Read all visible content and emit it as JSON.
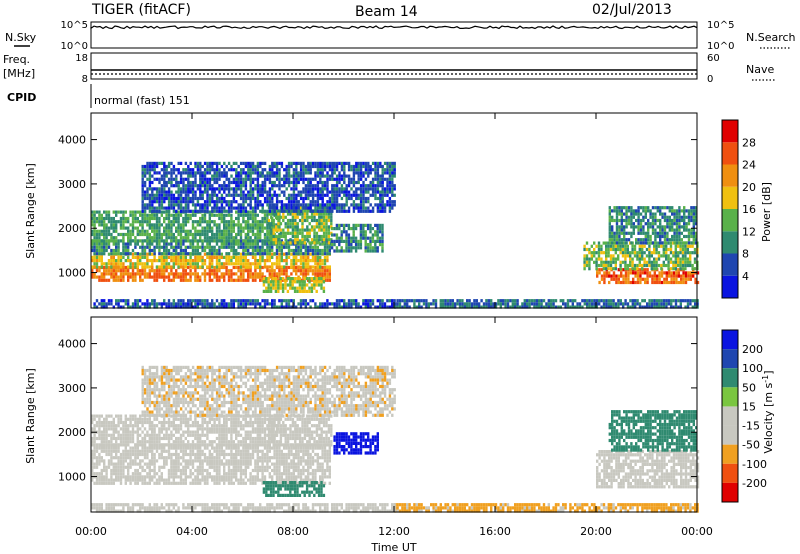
{
  "header": {
    "radar": "TIGER (fitACF)",
    "beam": "Beam 14",
    "date": "02/Jul/2013"
  },
  "nsky_panel": {
    "left_label": "N.Sky",
    "right_label": "N.Search",
    "left_ticks": [
      "10^5",
      "10^0"
    ],
    "right_ticks": [
      "10^5",
      "10^0"
    ]
  },
  "freq_panel": {
    "left_label_1": "Freq.",
    "left_label_2": "[MHz]",
    "right_label": "Nave",
    "left_ticks": [
      "18",
      "8"
    ],
    "right_ticks": [
      "60",
      "0"
    ]
  },
  "cpid_panel": {
    "label": "CPID",
    "mode": "normal (fast) 151"
  },
  "colors": {
    "power": [
      "#0a14e0",
      "#1f46b0",
      "#2f8a70",
      "#59b14a",
      "#f0c010",
      "#f08f10",
      "#f05010",
      "#e00000"
    ],
    "velocity": [
      "#e00000",
      "#f05010",
      "#f0a020",
      "#c8c8c0",
      "#c8c8c0",
      "#7ac640",
      "#2f8a70",
      "#1f46b0",
      "#0a14e0"
    ],
    "velocity_gray": "#c8c8c0"
  },
  "chart_data": [
    {
      "type": "heatmap",
      "name": "power",
      "ylabel": "Slant Range [km]",
      "yticks": [
        1000,
        2000,
        3000,
        4000
      ],
      "ylim": [
        200,
        4600
      ],
      "xlim": [
        0,
        24
      ],
      "colorbar": {
        "label": "Power [dB]",
        "ticks": [
          4,
          8,
          12,
          16,
          20,
          24,
          28
        ],
        "range": [
          0,
          32
        ]
      },
      "features": [
        {
          "t0": 0.0,
          "t1": 9.5,
          "r0": 850,
          "r1": 1150,
          "level": 24
        },
        {
          "t0": 0.0,
          "t1": 9.5,
          "r0": 1150,
          "r1": 1450,
          "level": 18
        },
        {
          "t0": 0.0,
          "t1": 9.5,
          "r0": 1450,
          "r1": 1750,
          "level": 10
        },
        {
          "t0": 0.0,
          "t1": 7.5,
          "r0": 1750,
          "r1": 2400,
          "level": 12
        },
        {
          "t0": 7.0,
          "t1": 9.5,
          "r0": 1700,
          "r1": 2500,
          "level": 14
        },
        {
          "t0": 9.5,
          "t1": 11.5,
          "r0": 1500,
          "r1": 2100,
          "level": 10
        },
        {
          "t0": 6.8,
          "t1": 9.2,
          "r0": 600,
          "r1": 900,
          "level": 16
        },
        {
          "t0": 2.0,
          "t1": 12.0,
          "r0": 2400,
          "r1": 3500,
          "level": 6
        },
        {
          "t0": 20.0,
          "t1": 24.0,
          "r0": 800,
          "r1": 1100,
          "level": 25
        },
        {
          "t0": 19.5,
          "t1": 24.0,
          "r0": 1100,
          "r1": 1700,
          "level": 14
        },
        {
          "t0": 20.5,
          "t1": 24.0,
          "r0": 1700,
          "r1": 2500,
          "level": 10
        },
        {
          "t0": 12.0,
          "t1": 24.0,
          "r0": 200,
          "r1": 400,
          "level": 8
        },
        {
          "t0": 0.0,
          "t1": 12.0,
          "r0": 200,
          "r1": 400,
          "level": 6
        }
      ]
    },
    {
      "type": "heatmap",
      "name": "velocity",
      "ylabel": "Slant Range [km]",
      "yticks": [
        1000,
        2000,
        3000,
        4000
      ],
      "ylim": [
        200,
        4600
      ],
      "xlim": [
        0,
        24
      ],
      "xlabel": "Time UT",
      "xticks": [
        "00:00",
        "04:00",
        "08:00",
        "12:00",
        "16:00",
        "20:00",
        "00:00"
      ],
      "colorbar": {
        "label": "Velocity [m s",
        "label_sup": "-1",
        "label_end": "]",
        "ticks": [
          "200",
          "100",
          "50",
          "15",
          "-15",
          "-50",
          "-100",
          "-200"
        ]
      },
      "features": [
        {
          "t0": 0.0,
          "t1": 9.5,
          "r0": 850,
          "r1": 1750,
          "v": 0
        },
        {
          "t0": 0.0,
          "t1": 7.5,
          "r0": 1750,
          "r1": 2400,
          "v": 0
        },
        {
          "t0": 7.0,
          "t1": 9.5,
          "r0": 1700,
          "r1": 2400,
          "v": 0
        },
        {
          "t0": 9.6,
          "t1": 11.4,
          "r0": 1500,
          "r1": 2000,
          "v": 200
        },
        {
          "t0": 6.8,
          "t1": 9.2,
          "r0": 600,
          "r1": 900,
          "v": 30
        },
        {
          "t0": 2.0,
          "t1": 12.0,
          "r0": 2400,
          "r1": 3500,
          "v": -40
        },
        {
          "t0": 20.0,
          "t1": 24.0,
          "r0": 800,
          "r1": 1600,
          "v": 0
        },
        {
          "t0": 20.5,
          "t1": 24.0,
          "r0": 1600,
          "r1": 2500,
          "v": 30
        },
        {
          "t0": 12.0,
          "t1": 24.0,
          "r0": 200,
          "r1": 400,
          "v": -60
        },
        {
          "t0": 0.0,
          "t1": 12.0,
          "r0": 200,
          "r1": 400,
          "v": -30
        }
      ]
    }
  ]
}
